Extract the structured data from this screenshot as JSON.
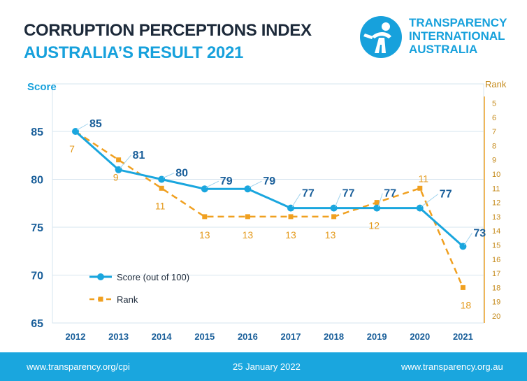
{
  "header": {
    "title": "CORRUPTION PERCEPTIONS INDEX",
    "subtitle": "AUSTRALIA’S RESULT 2021"
  },
  "brand": {
    "line1": "TRANSPARENCY",
    "line2": "INTERNATIONAL",
    "line3": "AUSTRALIA",
    "color": "#17a1dc"
  },
  "footer": {
    "left": "www.transparency.org/cpi",
    "center": "25 January 2022",
    "right": "www.transparency.org.au",
    "background": "#1aa6de"
  },
  "chart_data": {
    "type": "line",
    "x": [
      "2012",
      "2013",
      "2014",
      "2015",
      "2016",
      "2017",
      "2018",
      "2019",
      "2020",
      "2021"
    ],
    "series": [
      {
        "name": "Score (out of 100)",
        "axis": "left",
        "values": [
          85,
          81,
          80,
          79,
          79,
          77,
          77,
          77,
          77,
          73
        ],
        "color": "#1aa6de",
        "style": "solid",
        "marker": "circle"
      },
      {
        "name": "Rank",
        "axis": "right",
        "values": [
          7,
          9,
          11,
          13,
          13,
          13,
          13,
          12,
          11,
          18
        ],
        "color": "#f0a020",
        "style": "dashed",
        "marker": "square"
      }
    ],
    "ylabel": "Score",
    "y2label": "Rank",
    "ylim": [
      65,
      85
    ],
    "yticks": [
      65,
      70,
      75,
      80,
      85
    ],
    "y2lim": [
      5,
      20
    ],
    "y2_inverted": true,
    "y2ticks": [
      5,
      6,
      7,
      8,
      9,
      10,
      11,
      12,
      13,
      14,
      15,
      16,
      17,
      18,
      19,
      20
    ],
    "grid": true,
    "legend": "bottom-left"
  }
}
